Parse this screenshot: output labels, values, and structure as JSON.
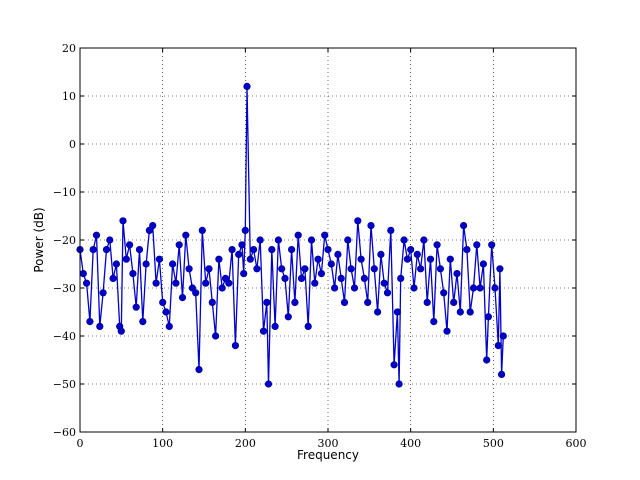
{
  "chart_data": {
    "type": "line",
    "xlabel": "Frequency",
    "ylabel": "Power (dB)",
    "xlim": [
      0,
      600
    ],
    "ylim": [
      -60,
      20
    ],
    "xticks": [
      0,
      100,
      200,
      300,
      400,
      500,
      600
    ],
    "yticks": [
      -60,
      -50,
      -40,
      -30,
      -20,
      -10,
      0,
      10,
      20
    ],
    "grid": true,
    "marker": "circle",
    "colors": {
      "series": "#0000cc",
      "axes": "#000000",
      "grid": "#000000"
    },
    "series": [
      {
        "x": [
          0,
          4,
          8,
          12,
          16,
          20,
          24,
          28,
          32,
          36,
          40,
          44,
          48,
          50,
          52,
          56,
          60,
          64,
          68,
          72,
          76,
          80,
          84,
          88,
          92,
          96,
          100,
          104,
          108,
          112,
          116,
          120,
          124,
          128,
          132,
          136,
          140,
          144,
          148,
          152,
          156,
          160,
          164,
          168,
          172,
          176,
          180,
          184,
          188,
          192,
          196,
          198,
          200,
          202,
          206,
          210,
          214,
          218,
          222,
          226,
          228,
          232,
          236,
          240,
          244,
          248,
          252,
          256,
          260,
          264,
          268,
          272,
          276,
          280,
          284,
          288,
          292,
          296,
          300,
          304,
          308,
          312,
          316,
          320,
          324,
          328,
          332,
          336,
          340,
          344,
          348,
          352,
          356,
          360,
          364,
          368,
          372,
          376,
          380,
          384,
          386,
          388,
          392,
          396,
          400,
          404,
          408,
          412,
          416,
          420,
          424,
          428,
          432,
          436,
          440,
          444,
          448,
          452,
          456,
          460,
          464,
          468,
          472,
          476,
          480,
          484,
          488,
          492,
          494,
          498,
          502,
          506,
          508,
          510,
          512
        ],
        "y": [
          -22,
          -27,
          -29,
          -37,
          -22,
          -19,
          -38,
          -31,
          -22,
          -20,
          -28,
          -25,
          -38,
          -39,
          -16,
          -24,
          -21,
          -27,
          -34,
          -22,
          -37,
          -25,
          -18,
          -17,
          -29,
          -24,
          -33,
          -35,
          -38,
          -25,
          -29,
          -21,
          -32,
          -19,
          -26,
          -30,
          -31,
          -47,
          -18,
          -29,
          -26,
          -33,
          -40,
          -24,
          -30,
          -28,
          -29,
          -22,
          -42,
          -23,
          -21,
          -27,
          -18,
          12,
          -24,
          -22,
          -26,
          -20,
          -39,
          -33,
          -50,
          -22,
          -38,
          -20,
          -26,
          -28,
          -36,
          -22,
          -33,
          -19,
          -28,
          -26,
          -38,
          -20,
          -29,
          -24,
          -27,
          -19,
          -22,
          -25,
          -30,
          -23,
          -28,
          -33,
          -20,
          -26,
          -30,
          -16,
          -24,
          -28,
          -33,
          -17,
          -26,
          -35,
          -23,
          -29,
          -31,
          -18,
          -46,
          -35,
          -50,
          -28,
          -20,
          -24,
          -22,
          -30,
          -23,
          -26,
          -20,
          -33,
          -24,
          -37,
          -21,
          -26,
          -31,
          -39,
          -24,
          -33,
          -27,
          -35,
          -17,
          -22,
          -35,
          -30,
          -21,
          -30,
          -25,
          -45,
          -36,
          -21,
          -30,
          -42,
          -26,
          -48,
          -40
        ]
      }
    ]
  }
}
